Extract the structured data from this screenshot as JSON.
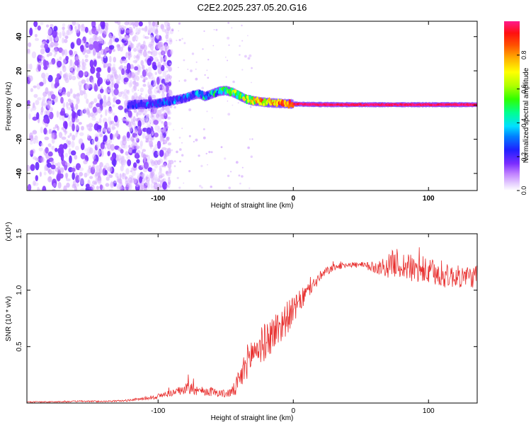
{
  "figure_title": "C2E2.2025.237.05.20.G16",
  "chart_data": [
    {
      "type": "heatmap",
      "title": "C2E2.2025.237.05.20.G16",
      "xlabel": "Height of straight line (km)",
      "ylabel": "Frequency (Hz)",
      "xlim": [
        -197,
        136
      ],
      "ylim": [
        -50,
        49
      ],
      "xticks": [
        -100,
        0,
        100
      ],
      "yticks": [
        -40,
        -20,
        0,
        20,
        40
      ],
      "colorbar": {
        "label": "Normalized spectral amplitude",
        "range": [
          0,
          1
        ],
        "ticks": [
          0.0,
          0.2,
          0.4,
          0.6,
          0.8
        ]
      },
      "ridge": {
        "x": [
          -122,
          -110,
          -100,
          -90,
          -80,
          -75,
          -70,
          -65,
          -60,
          -55,
          -50,
          -45,
          -40,
          -35,
          -30,
          -25,
          -20,
          -15,
          -10,
          -5,
          0,
          5,
          10,
          20,
          40,
          60,
          80,
          100,
          120,
          136
        ],
        "frequency": [
          0,
          0.5,
          1,
          2.5,
          4,
          5.5,
          6.5,
          5,
          6.5,
          8,
          8.5,
          7.5,
          5.5,
          3.5,
          2.5,
          2,
          1.5,
          1.2,
          1,
          0.8,
          0.6,
          0.5,
          0.4,
          0.3,
          0.2,
          0.2,
          0.2,
          0.2,
          0.2,
          0.2
        ],
        "amplitude": [
          0.3,
          0.32,
          0.35,
          0.38,
          0.42,
          0.45,
          0.48,
          0.5,
          0.52,
          0.55,
          0.6,
          0.65,
          0.7,
          0.75,
          0.8,
          0.85,
          0.9,
          0.92,
          0.94,
          0.96,
          0.97,
          0.98,
          0.98,
          0.98,
          0.98,
          0.98,
          0.98,
          0.98,
          0.98,
          0.98
        ]
      },
      "noise_region_x": [
        -197,
        -100
      ]
    },
    {
      "type": "line",
      "xlabel": "Height of straight line (km)",
      "ylabel": "SNR (10 * v/v)",
      "y_multiplier": "(x10⁴)",
      "xlim": [
        -197,
        136
      ],
      "ylim": [
        0,
        1.5
      ],
      "xticks": [
        -100,
        0,
        100
      ],
      "yticks": [
        0.5,
        1.0,
        1.5
      ],
      "series": [
        {
          "name": "SNR",
          "color": "#e8302f",
          "x": [
            -197,
            -180,
            -160,
            -140,
            -125,
            -110,
            -100,
            -90,
            -80,
            -75,
            -70,
            -60,
            -55,
            -50,
            -45,
            -40,
            -35,
            -30,
            -25,
            -20,
            -15,
            -10,
            -5,
            0,
            5,
            10,
            15,
            20,
            25,
            30,
            40,
            50,
            60,
            70,
            75,
            80,
            90,
            100,
            110,
            120,
            136
          ],
          "values": [
            0.01,
            0.01,
            0.015,
            0.015,
            0.02,
            0.04,
            0.06,
            0.09,
            0.12,
            0.16,
            0.11,
            0.1,
            0.09,
            0.08,
            0.1,
            0.18,
            0.35,
            0.45,
            0.5,
            0.55,
            0.62,
            0.68,
            0.75,
            0.82,
            0.9,
            0.98,
            1.05,
            1.12,
            1.17,
            1.2,
            1.23,
            1.22,
            1.2,
            1.21,
            1.25,
            1.22,
            1.18,
            1.16,
            1.13,
            1.12,
            1.12
          ],
          "noise_amplitude": [
            0.005,
            0.005,
            0.006,
            0.006,
            0.008,
            0.015,
            0.025,
            0.03,
            0.04,
            0.1,
            0.04,
            0.04,
            0.035,
            0.035,
            0.05,
            0.12,
            0.15,
            0.16,
            0.16,
            0.17,
            0.17,
            0.17,
            0.15,
            0.12,
            0.1,
            0.08,
            0.06,
            0.05,
            0.04,
            0.03,
            0.025,
            0.03,
            0.05,
            0.1,
            0.13,
            0.13,
            0.12,
            0.12,
            0.11,
            0.1,
            0.1
          ]
        }
      ]
    }
  ]
}
